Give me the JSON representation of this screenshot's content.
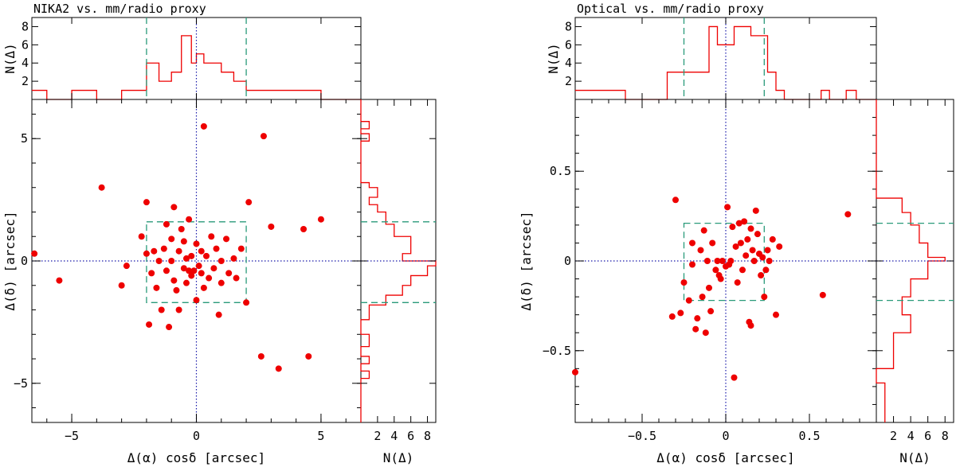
{
  "colors": {
    "points": "#ee0000",
    "histogram": "#ee0000",
    "box": "#2a9a7a",
    "axis_lines": "#1a1aaa",
    "frame": "#000000"
  },
  "chart_data": [
    {
      "type": "scatter",
      "title": "NIKA2 vs. mm/radio proxy",
      "xlabel": "Δ(α) cosδ [arcsec]",
      "ylabel": "Δ(δ) [arcsec]",
      "hist_label": "N(Δ)",
      "xlim": [
        -6.6,
        6.6
      ],
      "ylim": [
        -6.6,
        6.6
      ],
      "xticks": [
        {
          "v": -5,
          "t": "−5"
        },
        {
          "v": 0,
          "t": "0"
        },
        {
          "v": 5,
          "t": "5"
        }
      ],
      "yticks": [
        {
          "v": -5,
          "t": "−5"
        },
        {
          "v": 0,
          "t": "0"
        },
        {
          "v": 5,
          "t": "5"
        }
      ],
      "hist_lim": [
        0,
        9
      ],
      "hist_ticks": [
        {
          "v": 2,
          "t": "2"
        },
        {
          "v": 4,
          "t": "4"
        },
        {
          "v": 6,
          "t": "6"
        },
        {
          "v": 8,
          "t": "8"
        }
      ],
      "box": [
        -2.0,
        2.0,
        -1.7,
        1.6
      ],
      "points": [
        [
          -6.5,
          0.3
        ],
        [
          -5.5,
          -0.8
        ],
        [
          -3.8,
          3.0
        ],
        [
          -3.0,
          -1.0
        ],
        [
          -2.8,
          -0.2
        ],
        [
          -2.2,
          1.0
        ],
        [
          -2.0,
          2.4
        ],
        [
          -2.0,
          0.3
        ],
        [
          -1.9,
          -2.6
        ],
        [
          -1.8,
          -0.5
        ],
        [
          -1.7,
          0.4
        ],
        [
          -1.6,
          -1.1
        ],
        [
          -1.5,
          0.0
        ],
        [
          -1.4,
          -2.0
        ],
        [
          -1.3,
          0.5
        ],
        [
          -1.2,
          -0.4
        ],
        [
          -1.2,
          1.5
        ],
        [
          -1.1,
          -2.7
        ],
        [
          -1.0,
          0.0
        ],
        [
          -1.0,
          0.9
        ],
        [
          -0.9,
          2.2
        ],
        [
          -0.9,
          -0.8
        ],
        [
          -0.8,
          -1.2
        ],
        [
          -0.7,
          0.4
        ],
        [
          -0.7,
          -2.0
        ],
        [
          -0.6,
          1.3
        ],
        [
          -0.5,
          -0.3
        ],
        [
          -0.5,
          0.8
        ],
        [
          -0.4,
          -0.9
        ],
        [
          -0.4,
          0.1
        ],
        [
          -0.3,
          1.7
        ],
        [
          -0.3,
          -0.4
        ],
        [
          -0.2,
          0.2
        ],
        [
          -0.2,
          -0.6
        ],
        [
          -0.1,
          -0.4
        ],
        [
          0.0,
          0.7
        ],
        [
          0.0,
          -1.6
        ],
        [
          0.1,
          -0.2
        ],
        [
          0.2,
          -0.5
        ],
        [
          0.2,
          0.4
        ],
        [
          0.3,
          5.5
        ],
        [
          0.3,
          -1.1
        ],
        [
          0.4,
          0.2
        ],
        [
          0.5,
          -0.7
        ],
        [
          0.6,
          1.0
        ],
        [
          0.7,
          -0.3
        ],
        [
          0.8,
          0.5
        ],
        [
          0.9,
          -2.2
        ],
        [
          1.0,
          -0.9
        ],
        [
          1.0,
          0.0
        ],
        [
          1.2,
          0.9
        ],
        [
          1.3,
          -0.5
        ],
        [
          1.5,
          0.1
        ],
        [
          1.6,
          -0.7
        ],
        [
          1.8,
          0.5
        ],
        [
          2.0,
          -1.7
        ],
        [
          2.1,
          2.4
        ],
        [
          2.6,
          -3.9
        ],
        [
          2.7,
          5.1
        ],
        [
          3.0,
          1.4
        ],
        [
          3.3,
          -4.4
        ],
        [
          4.3,
          1.3
        ],
        [
          4.5,
          -3.9
        ],
        [
          5.0,
          1.7
        ]
      ],
      "hist_x": {
        "edges": [
          -6.6,
          -6.0,
          -5.0,
          -4.0,
          -3.0,
          -2.0,
          -1.5,
          -1.0,
          -0.6,
          -0.2,
          0.0,
          0.3,
          0.7,
          1.0,
          1.5,
          2.0,
          2.5,
          3.0,
          4.0,
          5.0,
          6.6
        ],
        "counts": [
          1,
          0,
          1,
          0,
          1,
          4,
          2,
          3,
          7,
          4,
          5,
          4,
          4,
          3,
          2,
          1,
          1,
          1,
          1,
          0
        ]
      },
      "hist_y": {
        "edges": [
          -6.6,
          -4.8,
          -4.5,
          -4.2,
          -3.9,
          -3.5,
          -3.0,
          -2.4,
          -1.8,
          -1.4,
          -1.0,
          -0.6,
          -0.2,
          0.0,
          0.3,
          0.6,
          1.0,
          1.5,
          2.0,
          2.3,
          2.6,
          3.0,
          3.2,
          3.6,
          4.9,
          5.2,
          5.4,
          5.7,
          6.6
        ],
        "counts": [
          0,
          1,
          0,
          1,
          0,
          1,
          0,
          1,
          3,
          5,
          6,
          8,
          9,
          5,
          6,
          6,
          4,
          3,
          2,
          1,
          2,
          1,
          0,
          0,
          1,
          0,
          1,
          0
        ]
      }
    },
    {
      "type": "scatter",
      "title": "Optical vs. mm/radio proxy",
      "xlabel": "Δ(α) cosδ [arcsec]",
      "ylabel": "Δ(δ) [arcsec]",
      "hist_label": "N(Δ)",
      "xlim": [
        -0.9,
        0.9
      ],
      "ylim": [
        -0.9,
        0.9
      ],
      "xticks": [
        {
          "v": -0.5,
          "t": "−0.5"
        },
        {
          "v": 0,
          "t": "0"
        },
        {
          "v": 0.5,
          "t": "0.5"
        }
      ],
      "yticks": [
        {
          "v": -0.5,
          "t": "−0.5"
        },
        {
          "v": 0,
          "t": "0"
        },
        {
          "v": 0.5,
          "t": "0.5"
        }
      ],
      "hist_lim": [
        0,
        9
      ],
      "hist_ticks": [
        {
          "v": 2,
          "t": "2"
        },
        {
          "v": 4,
          "t": "4"
        },
        {
          "v": 6,
          "t": "6"
        },
        {
          "v": 8,
          "t": "8"
        }
      ],
      "box": [
        -0.25,
        0.23,
        -0.22,
        0.21
      ],
      "points": [
        [
          -0.9,
          -0.62
        ],
        [
          -0.32,
          -0.31
        ],
        [
          -0.3,
          0.34
        ],
        [
          -0.27,
          -0.29
        ],
        [
          -0.25,
          -0.12
        ],
        [
          -0.22,
          -0.22
        ],
        [
          -0.2,
          0.1
        ],
        [
          -0.2,
          -0.02
        ],
        [
          -0.18,
          -0.38
        ],
        [
          -0.17,
          -0.32
        ],
        [
          -0.15,
          0.06
        ],
        [
          -0.14,
          -0.2
        ],
        [
          -0.13,
          0.17
        ],
        [
          -0.12,
          -0.4
        ],
        [
          -0.11,
          0.0
        ],
        [
          -0.1,
          -0.15
        ],
        [
          -0.09,
          -0.28
        ],
        [
          -0.08,
          0.1
        ],
        [
          -0.06,
          -0.05
        ],
        [
          -0.05,
          0.0
        ],
        [
          -0.04,
          -0.08
        ],
        [
          -0.03,
          -0.1
        ],
        [
          -0.02,
          0.0
        ],
        [
          0.0,
          -0.03
        ],
        [
          0.01,
          0.3
        ],
        [
          0.02,
          -0.02
        ],
        [
          0.03,
          0.0
        ],
        [
          0.04,
          0.19
        ],
        [
          0.05,
          -0.65
        ],
        [
          0.06,
          0.08
        ],
        [
          0.07,
          -0.12
        ],
        [
          0.08,
          0.21
        ],
        [
          0.09,
          0.1
        ],
        [
          0.1,
          -0.05
        ],
        [
          0.11,
          0.22
        ],
        [
          0.12,
          0.03
        ],
        [
          0.13,
          0.12
        ],
        [
          0.14,
          -0.34
        ],
        [
          0.15,
          0.18
        ],
        [
          0.15,
          -0.36
        ],
        [
          0.16,
          0.06
        ],
        [
          0.17,
          0.0
        ],
        [
          0.18,
          0.28
        ],
        [
          0.19,
          0.15
        ],
        [
          0.2,
          0.04
        ],
        [
          0.21,
          -0.08
        ],
        [
          0.22,
          0.02
        ],
        [
          0.23,
          -0.2
        ],
        [
          0.24,
          -0.05
        ],
        [
          0.25,
          0.06
        ],
        [
          0.26,
          0.0
        ],
        [
          0.28,
          0.12
        ],
        [
          0.3,
          -0.3
        ],
        [
          0.32,
          0.08
        ],
        [
          0.58,
          -0.19
        ],
        [
          0.73,
          0.26
        ]
      ],
      "hist_x": {
        "edges": [
          -0.9,
          -0.6,
          -0.5,
          -0.35,
          -0.1,
          -0.05,
          0.0,
          0.05,
          0.15,
          0.25,
          0.3,
          0.35,
          0.5,
          0.57,
          0.62,
          0.72,
          0.78,
          0.9
        ],
        "counts": [
          1,
          0,
          0,
          3,
          8,
          6,
          6,
          8,
          7,
          3,
          1,
          0,
          0,
          1,
          0,
          1,
          0
        ]
      },
      "hist_y": {
        "edges": [
          -0.9,
          -0.68,
          -0.6,
          -0.4,
          -0.3,
          -0.2,
          -0.1,
          0.0,
          0.02,
          0.1,
          0.2,
          0.27,
          0.35,
          0.9
        ],
        "counts": [
          1,
          0,
          2,
          4,
          3,
          4,
          6,
          8,
          6,
          5,
          4,
          3,
          0
        ]
      }
    }
  ]
}
